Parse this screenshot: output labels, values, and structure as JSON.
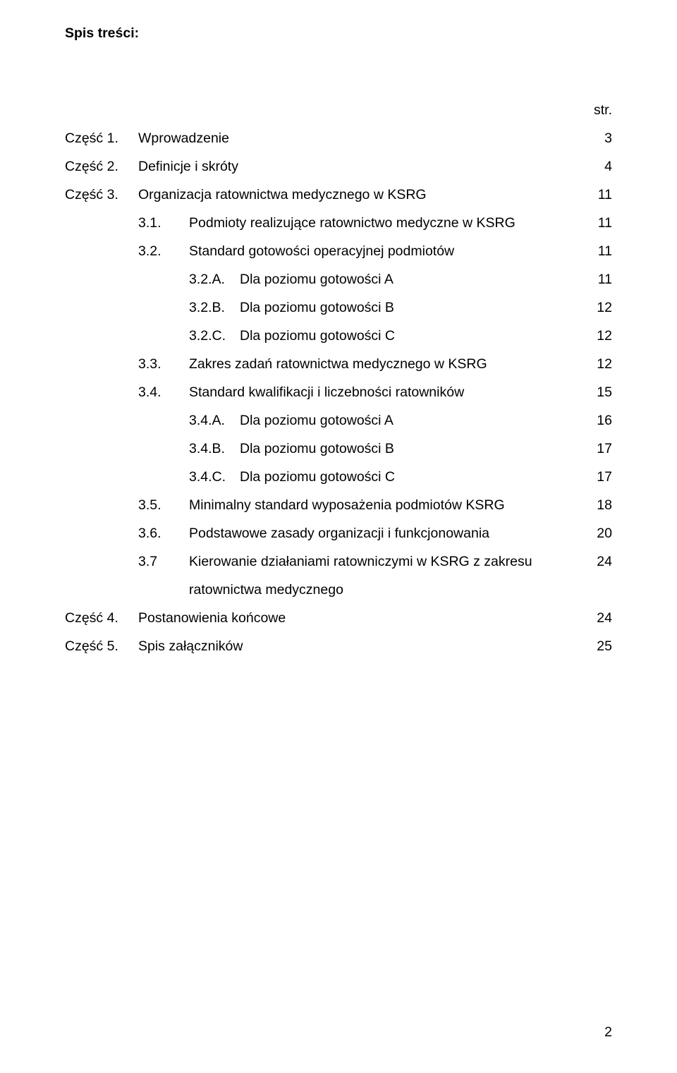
{
  "heading": "Spis treści:",
  "str_label": "str.",
  "rows": [
    {
      "type": "top",
      "left": "Część 1.",
      "num": "",
      "text": "Wprowadzenie",
      "page": "3"
    },
    {
      "type": "top",
      "left": "Część 2.",
      "num": "",
      "text": "Definicje i skróty",
      "page": "4"
    },
    {
      "type": "top",
      "left": "Część 3.",
      "num": "",
      "text": "Organizacja ratownictwa medycznego w KSRG",
      "page": "11"
    },
    {
      "type": "sub",
      "left": "",
      "num": "3.1.",
      "text": "Podmioty realizujące ratownictwo medyczne w KSRG",
      "page": "11"
    },
    {
      "type": "sub",
      "left": "",
      "num": "3.2.",
      "text": "Standard gotowości operacyjnej podmiotów",
      "page": "11"
    },
    {
      "type": "subsub",
      "left": "",
      "num": "3.2.A.",
      "text": "Dla poziomu gotowości A",
      "page": "11"
    },
    {
      "type": "subsub",
      "left": "",
      "num": "3.2.B.",
      "text": "Dla poziomu gotowości B",
      "page": "12"
    },
    {
      "type": "subsub",
      "left": "",
      "num": "3.2.C.",
      "text": "Dla poziomu gotowości C",
      "page": "12"
    },
    {
      "type": "sub",
      "left": "",
      "num": "3.3.",
      "text": "Zakres zadań ratownictwa medycznego w KSRG",
      "page": "12"
    },
    {
      "type": "sub",
      "left": "",
      "num": "3.4.",
      "text": "Standard kwalifikacji i liczebności ratowników",
      "page": "15"
    },
    {
      "type": "subsub",
      "left": "",
      "num": "3.4.A.",
      "text": "Dla poziomu gotowości A",
      "page": "16"
    },
    {
      "type": "subsub",
      "left": "",
      "num": "3.4.B.",
      "text": "Dla poziomu gotowości B",
      "page": "17"
    },
    {
      "type": "subsub",
      "left": "",
      "num": "3.4.C.",
      "text": "Dla poziomu gotowości C",
      "page": "17"
    },
    {
      "type": "sub",
      "left": "",
      "num": "3.5.",
      "text": "Minimalny standard wyposażenia podmiotów KSRG",
      "page": "18"
    },
    {
      "type": "sub",
      "left": "",
      "num": "3.6.",
      "text": "Podstawowe zasady organizacji i funkcjonowania",
      "page": "20"
    },
    {
      "type": "sub",
      "left": "",
      "num": "3.7",
      "text": "Kierowanie działaniami ratowniczymi w KSRG z zakresu",
      "page": "24",
      "cont": "ratownictwa medycznego"
    },
    {
      "type": "top",
      "left": "Część 4.",
      "num": "",
      "text": "Postanowienia końcowe",
      "page": "24"
    },
    {
      "type": "top",
      "left": "Część 5.",
      "num": "",
      "text": "Spis załączników",
      "page": "25"
    }
  ],
  "page_number": "2",
  "colors": {
    "text": "#000000",
    "background": "#ffffff"
  },
  "typography": {
    "font_family": "Verdana",
    "base_size_pt": 12,
    "heading_weight": 700
  }
}
